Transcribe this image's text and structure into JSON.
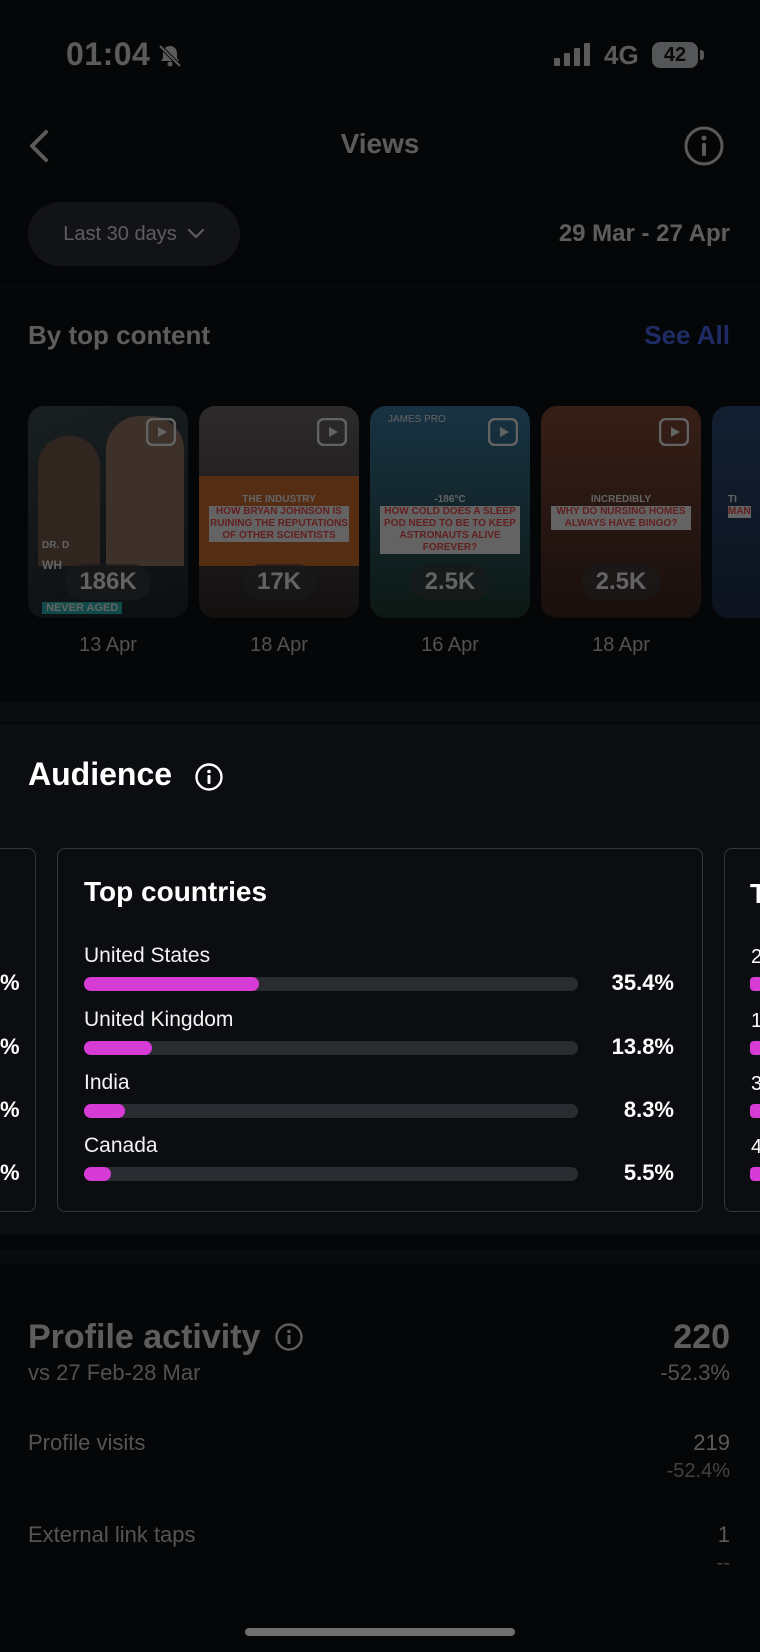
{
  "status_bar": {
    "time": "01:04",
    "network": "4G",
    "battery": "42"
  },
  "header": {
    "title": "Views"
  },
  "range": {
    "selector_label": "Last 30 days",
    "dates": "29 Mar - 27 Apr"
  },
  "top_content": {
    "heading": "By top content",
    "see_all": "See All",
    "cards": [
      {
        "views": "186K",
        "date": "13 Apr",
        "caption_top": "",
        "caption_bottom": "",
        "overlay_a": "DR. D",
        "overlay_b": "WH",
        "overlay_c": "NEVER AGED",
        "bg": "#2c3b3f"
      },
      {
        "views": "17K",
        "date": "18 Apr",
        "caption_top": "THE INDUSTRY",
        "caption_bottom": "HOW BRYAN JOHNSON IS RUINING THE REPUTATIONS OF OTHER SCIENTISTS",
        "bg": "#4a3a2a"
      },
      {
        "views": "2.5K",
        "date": "16 Apr",
        "caption_top": "-186°C",
        "caption_bottom": "HOW COLD DOES A SLEEP POD NEED TO BE TO KEEP ASTRONAUTS ALIVE FOREVER?",
        "overlay_a": "JAMES PRO",
        "bg": "#27536a"
      },
      {
        "views": "2.5K",
        "date": "18 Apr",
        "caption_top": "INCREDIBLY",
        "caption_bottom": "WHY DO NURSING HOMES ALWAYS HAVE BINGO?",
        "bg": "#5a3324"
      },
      {
        "views": "",
        "date": "",
        "caption_top": "TI",
        "caption_bottom": "MAN",
        "bg": "#2a4b78"
      }
    ]
  },
  "audience": {
    "title": "Audience",
    "top_countries": {
      "title": "Top countries",
      "rows": [
        {
          "label": "United States",
          "value": 35.4,
          "display": "35.4%"
        },
        {
          "label": "United Kingdom",
          "value": 13.8,
          "display": "13.8%"
        },
        {
          "label": "India",
          "value": 8.3,
          "display": "8.3%"
        },
        {
          "label": "Canada",
          "value": 5.5,
          "display": "5.5%"
        }
      ]
    },
    "left_panel_edge": [
      "%",
      "%",
      "%",
      "%"
    ],
    "right_panel_edge": {
      "title_char": "T",
      "rows": [
        "2",
        "1",
        "3",
        "4"
      ]
    },
    "colors": {
      "bar_fill": "#d63bd6",
      "bar_track": "#2a2c31"
    }
  },
  "profile_activity": {
    "title": "Profile activity",
    "comparison": "vs 27 Feb-28 Mar",
    "total": "220",
    "total_change": "-52.3%",
    "metrics": [
      {
        "label": "Profile visits",
        "value": "219",
        "change": "-52.4%"
      },
      {
        "label": "External link taps",
        "value": "1",
        "change": "--"
      }
    ]
  },
  "colors": {
    "accent_link": "#4a6cff",
    "background": "#050607"
  }
}
